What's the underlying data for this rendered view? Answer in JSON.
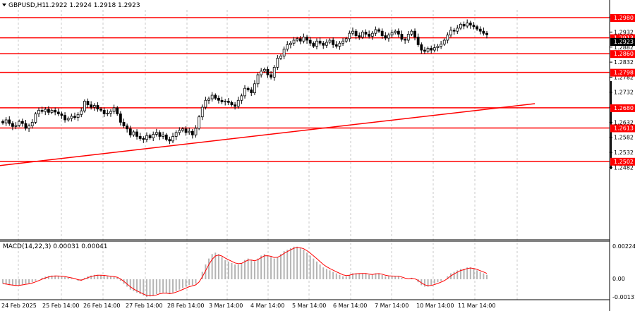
{
  "header": {
    "symbol": "GBPUSD,H1",
    "ohlc": "1.2922 1.2924 1.2918 1.2923"
  },
  "colors": {
    "level": "#ff0000",
    "trend": "#ff0000",
    "candle": "#000000",
    "grid": "#c8c8c8",
    "macd_hist": "#b4b4b4",
    "macd_signal": "#ff0000"
  },
  "price_axis": {
    "ticks": [
      "1.2982",
      "1.2932",
      "1.2882",
      "1.2832",
      "1.2782",
      "1.2732",
      "1.2682",
      "1.2632",
      "1.2582",
      "1.2532",
      "1.2482"
    ],
    "current": "1.2923"
  },
  "levels": [
    {
      "price": 1.298,
      "label": "1.2980"
    },
    {
      "price": 1.2913,
      "label": "1.2913"
    },
    {
      "price": 1.286,
      "label": "1.2860"
    },
    {
      "price": 1.2798,
      "label": "1.2798"
    },
    {
      "price": 1.268,
      "label": "1.2680"
    },
    {
      "price": 1.2613,
      "label": "1.2613"
    },
    {
      "price": 1.2502,
      "label": "1.2502"
    }
  ],
  "trendline": {
    "start": [
      "24 Feb 2025",
      1.2488
    ],
    "end": [
      "11 Mar 2025",
      1.2694
    ]
  },
  "time_axis": [
    "24 Feb 2025",
    "25 Feb 14:00",
    "26 Feb 14:00",
    "27 Feb 14:00",
    "28 Feb 14:00",
    "3 Mar 14:00",
    "4 Mar 14:00",
    "5 Mar 14:00",
    "6 Mar 14:00",
    "7 Mar 14:00",
    "10 Mar 14:00",
    "11 Mar 14:00"
  ],
  "macd": {
    "label": "MACD(14,22,3) 0.00031 0.00041",
    "ticks": [
      "0.00224",
      "0.00",
      "-0.00131"
    ]
  },
  "chart_data": {
    "type": "candlestick",
    "series": [
      {
        "name": "GBPUSD,H1",
        "close": [
          1.263,
          1.264,
          1.2628,
          1.2618,
          1.2622,
          1.2635,
          1.2628,
          1.2612,
          1.262,
          1.2632,
          1.266,
          1.2672,
          1.2668,
          1.2675,
          1.2665,
          1.2672,
          1.2666,
          1.266,
          1.2655,
          1.264,
          1.2645,
          1.2652,
          1.2648,
          1.2658,
          1.267,
          1.2702,
          1.269,
          1.2682,
          1.2688,
          1.2676,
          1.2672,
          1.266,
          1.2662,
          1.2668,
          1.268,
          1.266,
          1.2632,
          1.262,
          1.261,
          1.259,
          1.26,
          1.2585,
          1.2578,
          1.2575,
          1.2588,
          1.258,
          1.2592,
          1.2598,
          1.2585,
          1.259,
          1.2575,
          1.257,
          1.2585,
          1.2598,
          1.2605,
          1.261,
          1.2598,
          1.2602,
          1.259,
          1.2612,
          1.265,
          1.2682,
          1.2705,
          1.271,
          1.2722,
          1.2712,
          1.2705,
          1.27,
          1.2702,
          1.2698,
          1.269,
          1.2685,
          1.2705,
          1.272,
          1.2745,
          1.274,
          1.273,
          1.276,
          1.279,
          1.2802,
          1.2808,
          1.279,
          1.2782,
          1.2815,
          1.2845,
          1.2852,
          1.2875,
          1.289,
          1.2895,
          1.2905,
          1.291,
          1.2902,
          1.2915,
          1.2905,
          1.2895,
          1.2885,
          1.2902,
          1.2895,
          1.2888,
          1.2898,
          1.2905,
          1.289,
          1.2885,
          1.2895,
          1.2902,
          1.291,
          1.2928,
          1.2935,
          1.292,
          1.2915,
          1.2932,
          1.2925,
          1.2918,
          1.2928,
          1.294,
          1.2935,
          1.292,
          1.2912,
          1.2922,
          1.293,
          1.2935,
          1.2925,
          1.2908,
          1.2905,
          1.2925,
          1.2935,
          1.2915,
          1.289,
          1.2872,
          1.2868,
          1.2878,
          1.2872,
          1.288,
          1.2885,
          1.2892,
          1.2905,
          1.2922,
          1.2938,
          1.2935,
          1.2945,
          1.2958,
          1.2952,
          1.2962,
          1.2955,
          1.295,
          1.2942,
          1.2935,
          1.2928,
          1.2923
        ]
      }
    ],
    "macd_main": [
      -0.0003,
      -0.00035,
      -0.0004,
      -0.00042,
      -0.00045,
      -0.0004,
      -0.00035,
      -0.0003,
      -0.00028,
      -0.0002,
      -0.0001,
      0.0,
      0.0001,
      0.00018,
      0.00022,
      0.00025,
      0.00024,
      0.00022,
      0.0002,
      0.00015,
      0.0001,
      5e-05,
      0.0,
      -0.0001,
      -0.0001,
      0.0001,
      0.0002,
      0.00025,
      0.0003,
      0.0003,
      0.00028,
      0.00025,
      0.0002,
      0.00018,
      0.00015,
      0.0001,
      -0.0001,
      -0.0003,
      -0.0005,
      -0.0007,
      -0.0008,
      -0.0009,
      -0.001,
      -0.0011,
      -0.0012,
      -0.00115,
      -0.0011,
      -0.001,
      -0.0009,
      -0.0009,
      -0.00095,
      -0.001,
      -0.0009,
      -0.0008,
      -0.0007,
      -0.0006,
      -0.0005,
      -0.0004,
      -0.0004,
      -0.0003,
      0.0,
      0.0005,
      0.001,
      0.0014,
      0.0017,
      0.0018,
      0.0017,
      0.0015,
      0.0013,
      0.0012,
      0.0011,
      0.001,
      0.001,
      0.0011,
      0.0013,
      0.0014,
      0.0013,
      0.0012,
      0.0014,
      0.0016,
      0.0017,
      0.0016,
      0.0015,
      0.0014,
      0.0015,
      0.0017,
      0.0019,
      0.002,
      0.0021,
      0.0022,
      0.0022,
      0.0021,
      0.002,
      0.0018,
      0.0016,
      0.0014,
      0.0012,
      0.001,
      0.0008,
      0.0007,
      0.0006,
      0.0005,
      0.0004,
      0.0003,
      0.0002,
      0.0002,
      0.0003,
      0.0004,
      0.0004,
      0.0004,
      0.0004,
      0.0004,
      0.0003,
      0.0003,
      0.0004,
      0.0004,
      0.0003,
      0.0002,
      0.0002,
      0.0002,
      0.0002,
      0.0002,
      0.0001,
      0.0,
      0.0,
      0.0001,
      0.0,
      -0.0002,
      -0.0004,
      -0.0005,
      -0.0005,
      -0.0004,
      -0.0003,
      -0.0002,
      -0.0001,
      0.0,
      0.0002,
      0.0004,
      0.0005,
      0.0006,
      0.0007,
      0.0007,
      0.0008,
      0.0008,
      0.0007,
      0.0006,
      0.0005,
      0.0004,
      0.0003
    ]
  }
}
